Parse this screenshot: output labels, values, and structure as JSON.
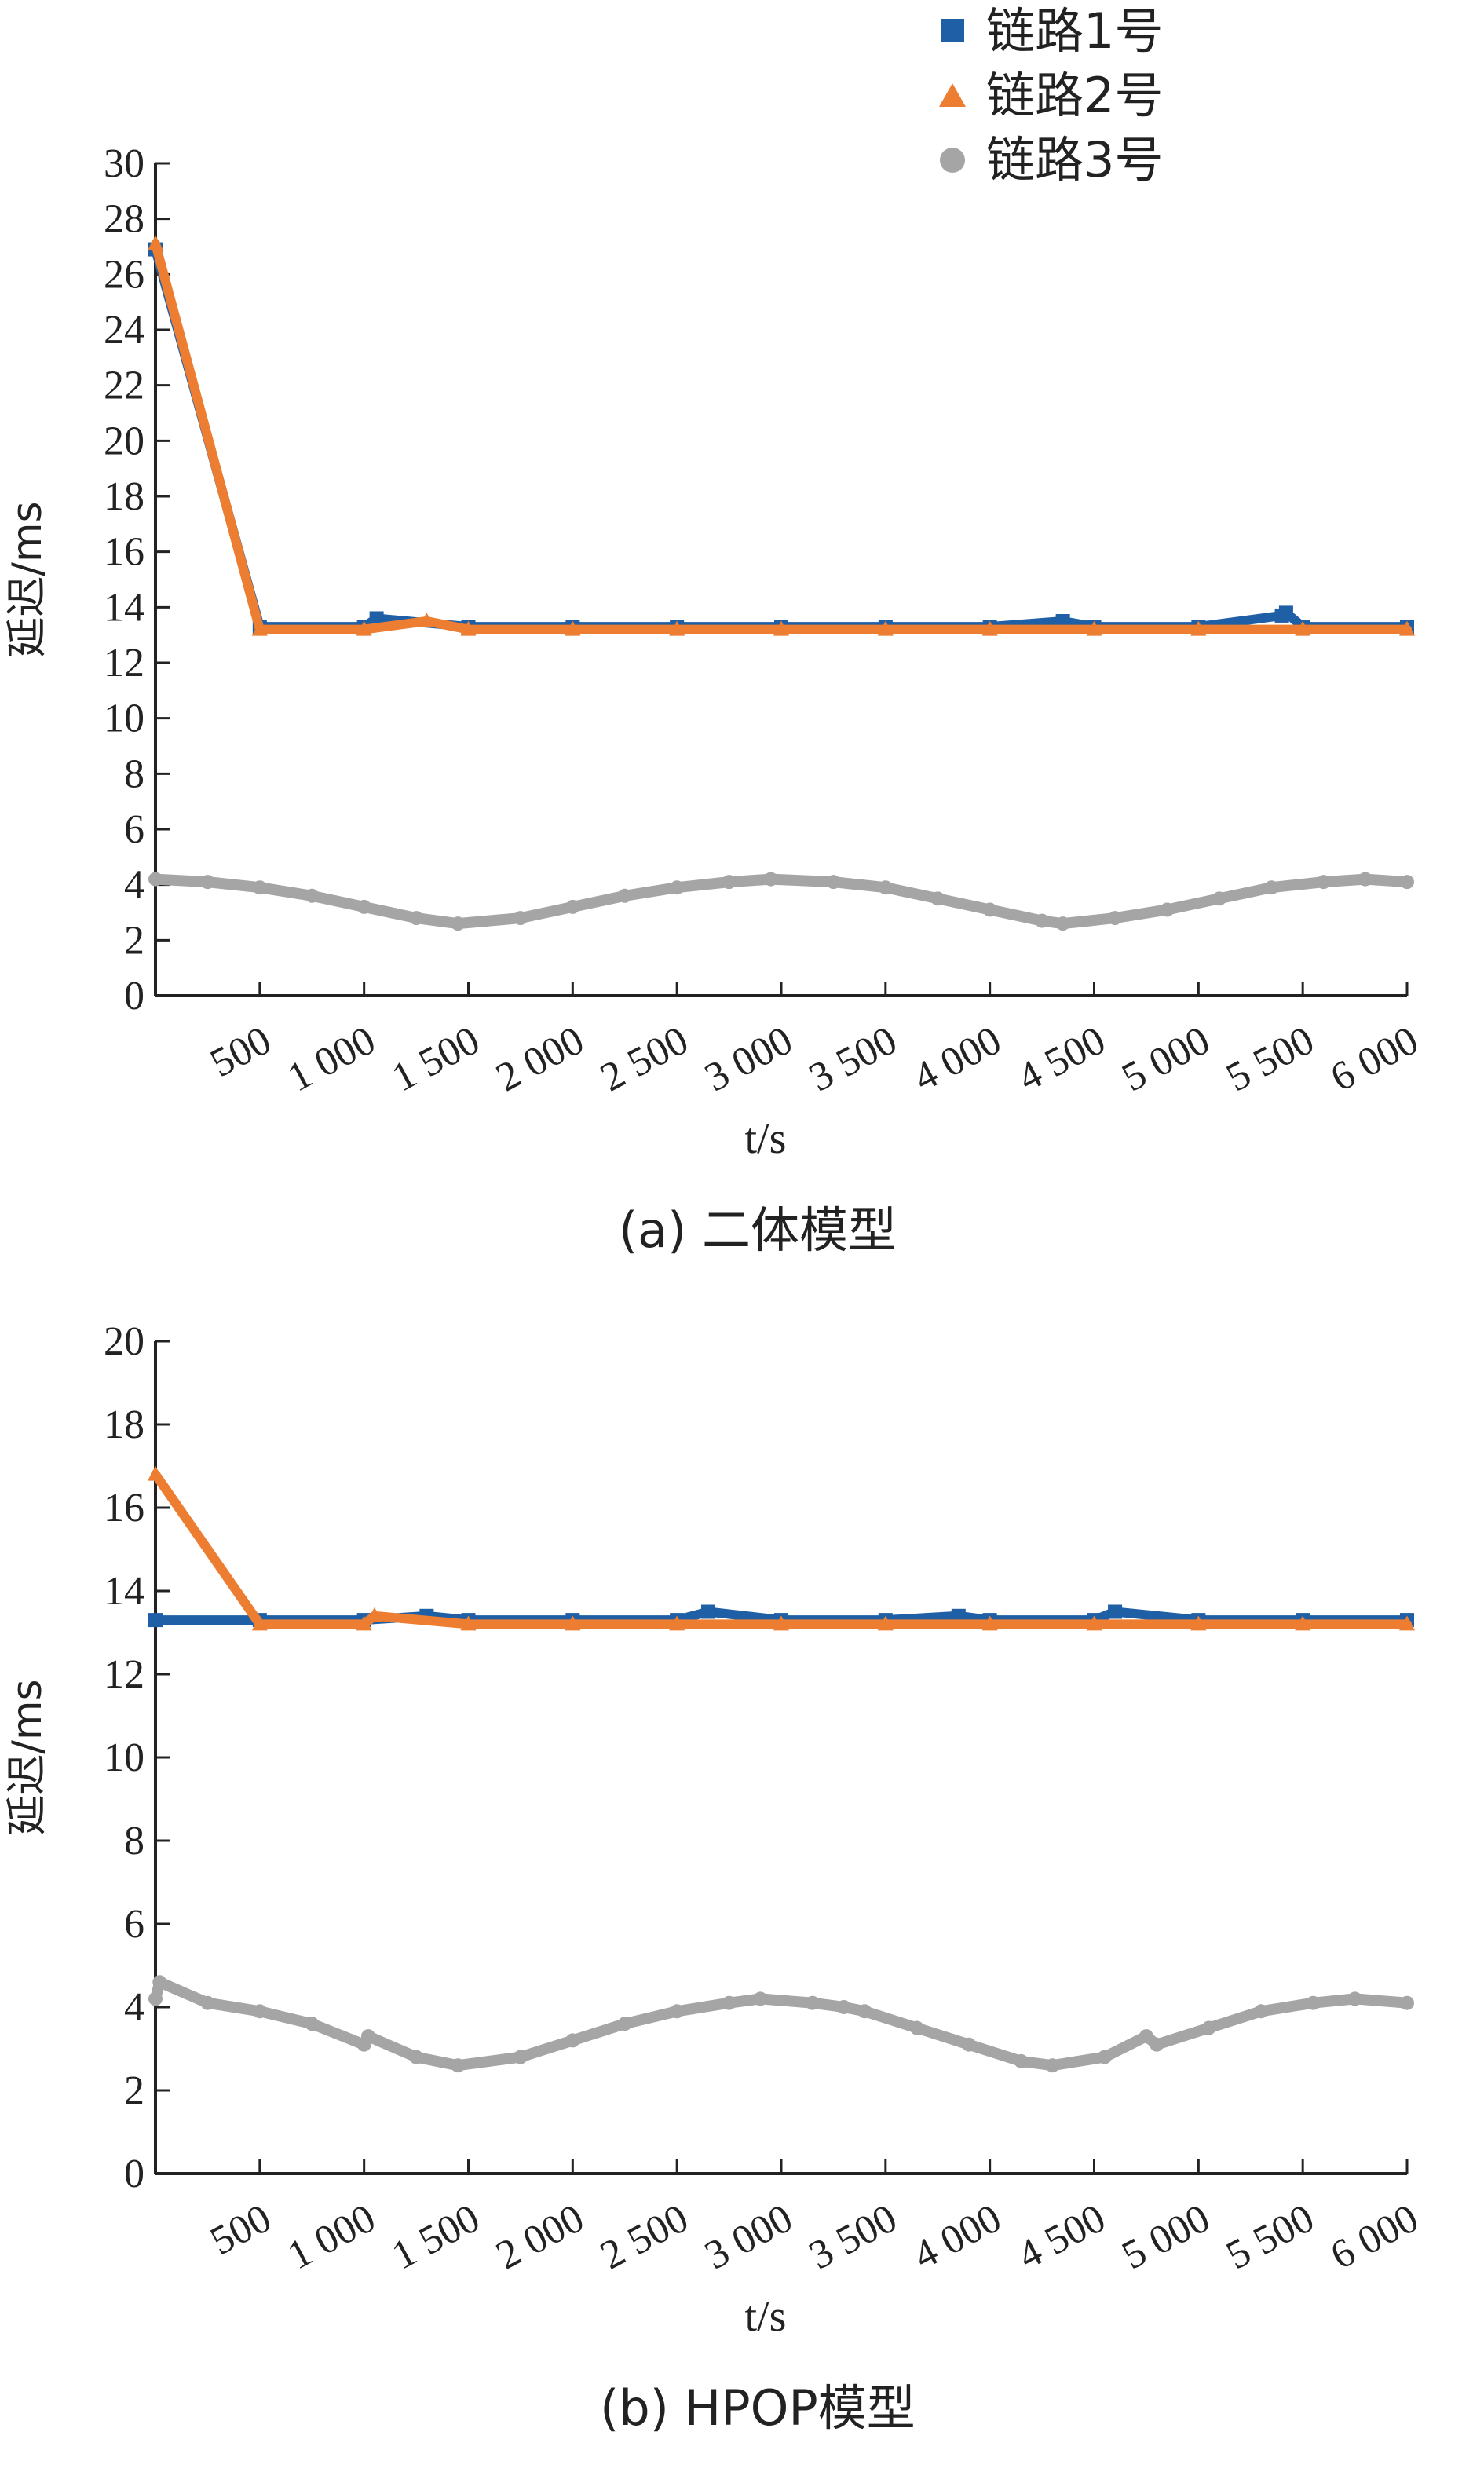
{
  "legend": {
    "items": [
      {
        "label": "链路1号",
        "marker": "square",
        "color": "#1f5fa5"
      },
      {
        "label": "链路2号",
        "marker": "triangle",
        "color": "#ed7d31"
      },
      {
        "label": "链路3号",
        "marker": "circle",
        "color": "#a5a5a5"
      }
    ],
    "placement": "top-right"
  },
  "chart_data": [
    {
      "type": "scatter",
      "caption": "(a) 二体模型",
      "xlabel": "t/s",
      "ylabel": "延迟/ms",
      "xlim": [
        0,
        6000
      ],
      "ylim": [
        0,
        30
      ],
      "xticks": [
        500,
        1000,
        1500,
        2000,
        2500,
        3000,
        3500,
        4000,
        4500,
        5000,
        5500,
        6000
      ],
      "xtick_labels": [
        "500",
        "1 000",
        "1 500",
        "2 000",
        "2 500",
        "3 000",
        "3 500",
        "4 000",
        "4 500",
        "5 000",
        "5 500",
        "6 000"
      ],
      "yticks": [
        0,
        2,
        4,
        6,
        8,
        10,
        12,
        14,
        16,
        18,
        20,
        22,
        24,
        26,
        28,
        30
      ],
      "ytick_labels": [
        "0",
        "2",
        "4",
        "6",
        "8",
        "10",
        "12",
        "14",
        "16",
        "18",
        "20",
        "22",
        "24",
        "26",
        "28",
        "30"
      ],
      "grid": false,
      "series": [
        {
          "name": "链路1号",
          "marker": "square",
          "color": "#1f5fa5",
          "x": [
            0,
            500,
            1000,
            1060,
            1500,
            2000,
            2500,
            3000,
            3500,
            4000,
            4350,
            4500,
            5000,
            5400,
            5420,
            5500,
            6000
          ],
          "y": [
            26.9,
            13.3,
            13.3,
            13.6,
            13.3,
            13.3,
            13.3,
            13.3,
            13.3,
            13.3,
            13.5,
            13.3,
            13.3,
            13.7,
            13.8,
            13.3,
            13.3
          ]
        },
        {
          "name": "链路2号",
          "marker": "triangle",
          "color": "#ed7d31",
          "x": [
            0,
            500,
            1000,
            1300,
            1500,
            2000,
            2500,
            3000,
            3500,
            4000,
            4500,
            5000,
            5500,
            6000
          ],
          "y": [
            27.1,
            13.2,
            13.2,
            13.5,
            13.2,
            13.2,
            13.2,
            13.2,
            13.2,
            13.2,
            13.2,
            13.2,
            13.2,
            13.2
          ]
        },
        {
          "name": "链路3号",
          "marker": "circle",
          "color": "#a5a5a5",
          "x": [
            0,
            250,
            500,
            750,
            1000,
            1250,
            1450,
            1750,
            2000,
            2250,
            2500,
            2750,
            2950,
            3250,
            3500,
            3750,
            4000,
            4250,
            4350,
            4600,
            4850,
            5100,
            5350,
            5600,
            5800,
            6000
          ],
          "y": [
            4.2,
            4.1,
            3.9,
            3.6,
            3.2,
            2.8,
            2.6,
            2.8,
            3.2,
            3.6,
            3.9,
            4.1,
            4.2,
            4.1,
            3.9,
            3.5,
            3.1,
            2.7,
            2.6,
            2.8,
            3.1,
            3.5,
            3.9,
            4.1,
            4.2,
            4.1
          ]
        }
      ]
    },
    {
      "type": "scatter",
      "caption": "(b) HPOP模型",
      "xlabel": "t/s",
      "ylabel": "延迟/ms",
      "xlim": [
        0,
        6000
      ],
      "ylim": [
        0,
        20
      ],
      "xticks": [
        500,
        1000,
        1500,
        2000,
        2500,
        3000,
        3500,
        4000,
        4500,
        5000,
        5500,
        6000
      ],
      "xtick_labels": [
        "500",
        "1 000",
        "1 500",
        "2 000",
        "2 500",
        "3 000",
        "3 500",
        "4 000",
        "4 500",
        "5 000",
        "5 500",
        "6 000"
      ],
      "yticks": [
        0,
        2,
        4,
        6,
        8,
        10,
        12,
        14,
        16,
        18,
        20
      ],
      "ytick_labels": [
        "0",
        "2",
        "4",
        "6",
        "8",
        "10",
        "12",
        "14",
        "16",
        "18",
        "20"
      ],
      "grid": false,
      "series": [
        {
          "name": "链路1号",
          "marker": "square",
          "color": "#1f5fa5",
          "x": [
            0,
            500,
            1000,
            1300,
            1500,
            2000,
            2500,
            2650,
            3000,
            3500,
            3850,
            4000,
            4500,
            4600,
            5000,
            5500,
            6000
          ],
          "y": [
            13.3,
            13.3,
            13.3,
            13.4,
            13.3,
            13.3,
            13.3,
            13.5,
            13.3,
            13.3,
            13.4,
            13.3,
            13.3,
            13.5,
            13.3,
            13.3,
            13.3
          ]
        },
        {
          "name": "链路2号",
          "marker": "triangle",
          "color": "#ed7d31",
          "x": [
            0,
            500,
            1000,
            1050,
            1500,
            2000,
            2500,
            3000,
            3500,
            4000,
            4500,
            5000,
            5500,
            6000
          ],
          "y": [
            16.8,
            13.2,
            13.2,
            13.4,
            13.2,
            13.2,
            13.2,
            13.2,
            13.2,
            13.2,
            13.2,
            13.2,
            13.2,
            13.2
          ]
        },
        {
          "name": "链路3号",
          "marker": "circle",
          "color": "#a5a5a5",
          "x": [
            0,
            20,
            250,
            500,
            750,
            1000,
            1020,
            1250,
            1450,
            1750,
            2000,
            2250,
            2500,
            2750,
            2900,
            3150,
            3300,
            3400,
            3650,
            3900,
            4150,
            4300,
            4550,
            4750,
            4800,
            5050,
            5300,
            5550,
            5750,
            6000
          ],
          "y": [
            4.2,
            4.6,
            4.1,
            3.9,
            3.6,
            3.1,
            3.3,
            2.8,
            2.6,
            2.8,
            3.2,
            3.6,
            3.9,
            4.1,
            4.2,
            4.1,
            4.0,
            3.9,
            3.5,
            3.1,
            2.7,
            2.6,
            2.8,
            3.3,
            3.1,
            3.5,
            3.9,
            4.1,
            4.2,
            4.1
          ]
        }
      ]
    }
  ]
}
